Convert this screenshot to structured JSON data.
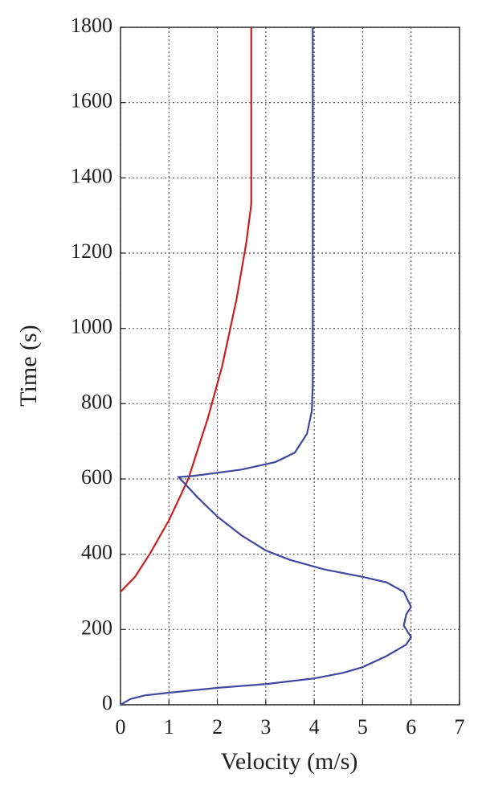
{
  "chart_data": {
    "type": "line",
    "x_label": "Velocity (m/s)",
    "y_label": "Time (s)",
    "xlim": [
      0,
      7
    ],
    "xticks": [
      0,
      1,
      2,
      3,
      4,
      5,
      6,
      7
    ],
    "ylim": [
      0,
      1800
    ],
    "yticks": [
      0,
      200,
      400,
      600,
      800,
      1000,
      1200,
      1400,
      1600,
      1800
    ],
    "grid": true,
    "series": [
      {
        "color": "#c8201e",
        "x": [
          0,
          0.3,
          0.6,
          1,
          1.4,
          1.8,
          2.1,
          2.4,
          2.6,
          2.7,
          2.7
        ],
        "values": [
          300,
          340,
          400,
          490,
          600,
          760,
          900,
          1080,
          1230,
          1330,
          1800
        ]
      },
      {
        "color": "#3f47a0",
        "x": [
          0,
          0.2,
          0.5,
          1,
          2,
          3,
          4,
          4.6,
          5,
          5.5,
          5.9,
          6,
          5.85,
          5.9,
          6,
          5.85,
          5.5,
          5,
          4.2,
          3.5,
          3,
          2.5,
          2,
          1.6,
          1.2,
          1.5,
          2.5,
          3.2,
          3.6,
          3.85,
          3.95,
          3.97,
          3.97
        ],
        "values": [
          0,
          15,
          25,
          32,
          45,
          55,
          70,
          85,
          100,
          130,
          160,
          180,
          210,
          240,
          260,
          300,
          325,
          340,
          360,
          385,
          410,
          450,
          500,
          550,
          605,
          608,
          625,
          645,
          670,
          720,
          780,
          850,
          1800
        ]
      }
    ]
  }
}
